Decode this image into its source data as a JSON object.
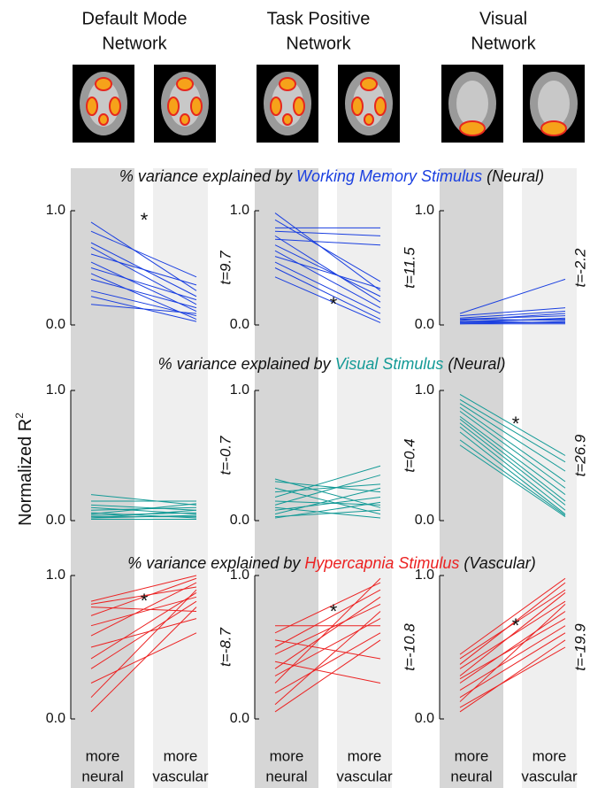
{
  "column_titles": [
    [
      "Default Mode",
      "Network"
    ],
    [
      "Task Positive",
      "Network"
    ],
    [
      "Visual",
      "Network"
    ]
  ],
  "row_titles": [
    {
      "prefix": "% variance explained by ",
      "stimulus": "Working Memory Stimulus",
      "suffix": " (Neural)",
      "color": "#1a3fe0"
    },
    {
      "prefix": "% variance explained by ",
      "stimulus": "Visual Stimulus",
      "suffix": " (Neural)",
      "color": "#139a96"
    },
    {
      "prefix": "% variance explained by ",
      "stimulus": "Hypercapnia Stimulus",
      "suffix": " (Vascular)",
      "color": "#ec2222"
    }
  ],
  "y_label": {
    "text": "Normalized R",
    "sup": "2"
  },
  "x_categories": [
    [
      "more",
      "neural"
    ],
    [
      "more",
      "vascular"
    ]
  ],
  "chart_data": [
    {
      "type": "slope",
      "color": "#1a3fe0",
      "ylim": [
        0,
        1
      ],
      "yticks": [
        {
          "value": 0,
          "label": "0.0"
        },
        {
          "value": 1,
          "label": "1.0"
        }
      ],
      "annotation": "t=9.7",
      "marker": "*",
      "series": [
        {
          "values": [
            0.9,
            0.3
          ]
        },
        {
          "values": [
            0.82,
            0.42
          ]
        },
        {
          "values": [
            0.72,
            0.25
          ]
        },
        {
          "values": [
            0.68,
            0.18
          ]
        },
        {
          "values": [
            0.62,
            0.35
          ]
        },
        {
          "values": [
            0.55,
            0.12
          ]
        },
        {
          "values": [
            0.5,
            0.22
          ]
        },
        {
          "values": [
            0.45,
            0.05
          ]
        },
        {
          "values": [
            0.4,
            0.15
          ]
        },
        {
          "values": [
            0.3,
            0.08
          ]
        },
        {
          "values": [
            0.25,
            0.03
          ]
        },
        {
          "values": [
            0.18,
            0.1
          ]
        }
      ]
    },
    {
      "type": "slope",
      "color": "#1a3fe0",
      "ylim": [
        0,
        1
      ],
      "yticks": [
        {
          "value": 0,
          "label": "0.0"
        },
        {
          "value": 1,
          "label": "1.0"
        }
      ],
      "annotation": "t=11.5",
      "marker": "*",
      "series": [
        {
          "values": [
            0.98,
            0.3
          ]
        },
        {
          "values": [
            0.92,
            0.38
          ]
        },
        {
          "values": [
            0.85,
            0.85
          ]
        },
        {
          "values": [
            0.82,
            0.78
          ]
        },
        {
          "values": [
            0.78,
            0.2
          ]
        },
        {
          "values": [
            0.75,
            0.7
          ]
        },
        {
          "values": [
            0.7,
            0.25
          ]
        },
        {
          "values": [
            0.65,
            0.15
          ]
        },
        {
          "values": [
            0.6,
            0.32
          ]
        },
        {
          "values": [
            0.55,
            0.1
          ]
        },
        {
          "values": [
            0.5,
            0.05
          ]
        },
        {
          "values": [
            0.42,
            0.02
          ]
        }
      ]
    },
    {
      "type": "slope",
      "color": "#1a3fe0",
      "ylim": [
        0,
        1
      ],
      "yticks": [
        {
          "value": 0,
          "label": "0.0"
        },
        {
          "value": 1,
          "label": "1.0"
        }
      ],
      "annotation": "t=-2.2",
      "series": [
        {
          "values": [
            0.1,
            0.4
          ]
        },
        {
          "values": [
            0.08,
            0.15
          ]
        },
        {
          "values": [
            0.06,
            0.12
          ]
        },
        {
          "values": [
            0.05,
            0.08
          ]
        },
        {
          "values": [
            0.04,
            0.1
          ]
        },
        {
          "values": [
            0.03,
            0.05
          ]
        },
        {
          "values": [
            0.02,
            0.06
          ]
        },
        {
          "values": [
            0.02,
            0.02
          ]
        },
        {
          "values": [
            0.01,
            0.03
          ]
        },
        {
          "values": [
            0.01,
            0.01
          ]
        },
        {
          "values": [
            0.03,
            0.02
          ]
        },
        {
          "values": [
            0.05,
            0.04
          ]
        }
      ]
    },
    {
      "type": "slope",
      "color": "#139a96",
      "ylim": [
        0,
        1
      ],
      "yticks": [
        {
          "value": 0,
          "label": "0.0"
        },
        {
          "value": 1,
          "label": "1.0"
        }
      ],
      "annotation": "t=-0.7",
      "series": [
        {
          "values": [
            0.2,
            0.12
          ]
        },
        {
          "values": [
            0.15,
            0.15
          ]
        },
        {
          "values": [
            0.12,
            0.08
          ]
        },
        {
          "values": [
            0.1,
            0.05
          ]
        },
        {
          "values": [
            0.08,
            0.1
          ]
        },
        {
          "values": [
            0.06,
            0.02
          ]
        },
        {
          "values": [
            0.05,
            0.13
          ]
        },
        {
          "values": [
            0.04,
            0.06
          ]
        },
        {
          "values": [
            0.03,
            0.03
          ]
        },
        {
          "values": [
            0.02,
            0.08
          ]
        },
        {
          "values": [
            0.01,
            0.01
          ]
        },
        {
          "values": [
            0.02,
            0.04
          ]
        }
      ]
    },
    {
      "type": "slope",
      "color": "#139a96",
      "ylim": [
        0,
        1
      ],
      "yticks": [
        {
          "value": 0,
          "label": "0.0"
        },
        {
          "value": 1,
          "label": "1.0"
        }
      ],
      "annotation": "t=0.4",
      "series": [
        {
          "values": [
            0.32,
            0.1
          ]
        },
        {
          "values": [
            0.3,
            0.22
          ]
        },
        {
          "values": [
            0.25,
            0.05
          ]
        },
        {
          "values": [
            0.22,
            0.28
          ]
        },
        {
          "values": [
            0.18,
            0.42
          ]
        },
        {
          "values": [
            0.15,
            0.12
          ]
        },
        {
          "values": [
            0.12,
            0.35
          ]
        },
        {
          "values": [
            0.1,
            0.02
          ]
        },
        {
          "values": [
            0.08,
            0.18
          ]
        },
        {
          "values": [
            0.05,
            0.25
          ]
        },
        {
          "values": [
            0.03,
            0.08
          ]
        },
        {
          "values": [
            0.02,
            0.14
          ]
        }
      ]
    },
    {
      "type": "slope",
      "color": "#139a96",
      "ylim": [
        0,
        1
      ],
      "yticks": [
        {
          "value": 0,
          "label": "0.0"
        },
        {
          "value": 1,
          "label": "1.0"
        }
      ],
      "annotation": "t=26.9",
      "marker": "*",
      "series": [
        {
          "values": [
            0.97,
            0.5
          ]
        },
        {
          "values": [
            0.93,
            0.45
          ]
        },
        {
          "values": [
            0.9,
            0.38
          ]
        },
        {
          "values": [
            0.87,
            0.3
          ]
        },
        {
          "values": [
            0.84,
            0.25
          ]
        },
        {
          "values": [
            0.8,
            0.2
          ]
        },
        {
          "values": [
            0.78,
            0.15
          ]
        },
        {
          "values": [
            0.75,
            0.12
          ]
        },
        {
          "values": [
            0.72,
            0.08
          ]
        },
        {
          "values": [
            0.68,
            0.05
          ]
        },
        {
          "values": [
            0.62,
            0.04
          ]
        },
        {
          "values": [
            0.58,
            0.03
          ]
        }
      ]
    },
    {
      "type": "slope",
      "color": "#ec2222",
      "ylim": [
        0,
        1
      ],
      "yticks": [
        {
          "value": 0,
          "label": "0.0"
        },
        {
          "value": 1,
          "label": "1.0"
        }
      ],
      "annotation": "t=-8.7",
      "marker": "*",
      "series": [
        {
          "values": [
            0.82,
            1.0
          ]
        },
        {
          "values": [
            0.8,
            0.92
          ]
        },
        {
          "values": [
            0.78,
            0.75
          ]
        },
        {
          "values": [
            0.72,
            0.98
          ]
        },
        {
          "values": [
            0.65,
            0.85
          ]
        },
        {
          "values": [
            0.58,
            0.95
          ]
        },
        {
          "values": [
            0.5,
            0.7
          ]
        },
        {
          "values": [
            0.42,
            0.88
          ]
        },
        {
          "values": [
            0.35,
            0.82
          ]
        },
        {
          "values": [
            0.25,
            0.6
          ]
        },
        {
          "values": [
            0.15,
            0.9
          ]
        },
        {
          "values": [
            0.05,
            0.78
          ]
        }
      ]
    },
    {
      "type": "slope",
      "color": "#ec2222",
      "ylim": [
        0,
        1
      ],
      "yticks": [
        {
          "value": 0,
          "label": "0.0"
        },
        {
          "value": 1,
          "label": "1.0"
        }
      ],
      "annotation": "t=-10.8",
      "marker": "*",
      "series": [
        {
          "values": [
            0.65,
            0.65
          ]
        },
        {
          "values": [
            0.6,
            0.95
          ]
        },
        {
          "values": [
            0.55,
            0.42
          ]
        },
        {
          "values": [
            0.5,
            0.9
          ]
        },
        {
          "values": [
            0.45,
            0.8
          ]
        },
        {
          "values": [
            0.4,
            0.25
          ]
        },
        {
          "values": [
            0.35,
            0.85
          ]
        },
        {
          "values": [
            0.3,
            0.7
          ]
        },
        {
          "values": [
            0.25,
            0.98
          ]
        },
        {
          "values": [
            0.18,
            0.6
          ]
        },
        {
          "values": [
            0.1,
            0.75
          ]
        },
        {
          "values": [
            0.05,
            0.55
          ]
        }
      ]
    },
    {
      "type": "slope",
      "color": "#ec2222",
      "ylim": [
        0,
        1
      ],
      "yticks": [
        {
          "value": 0,
          "label": "0.0"
        },
        {
          "value": 1,
          "label": "1.0"
        }
      ],
      "annotation": "t=-19.9",
      "marker": "*",
      "series": [
        {
          "values": [
            0.45,
            0.98
          ]
        },
        {
          "values": [
            0.42,
            0.9
          ]
        },
        {
          "values": [
            0.38,
            0.95
          ]
        },
        {
          "values": [
            0.35,
            0.82
          ]
        },
        {
          "values": [
            0.3,
            0.88
          ]
        },
        {
          "values": [
            0.28,
            0.7
          ]
        },
        {
          "values": [
            0.25,
            0.75
          ]
        },
        {
          "values": [
            0.2,
            0.65
          ]
        },
        {
          "values": [
            0.15,
            0.6
          ]
        },
        {
          "values": [
            0.12,
            0.8
          ]
        },
        {
          "values": [
            0.08,
            0.5
          ]
        },
        {
          "values": [
            0.05,
            0.55
          ]
        }
      ]
    }
  ]
}
